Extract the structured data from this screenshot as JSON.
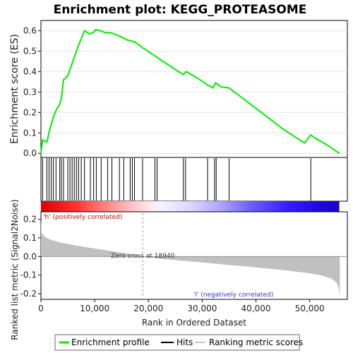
{
  "chart_data": [
    {
      "type": "line",
      "title": "Enrichment plot: KEGG_PROTEASOME",
      "ylabel": "Enrichment score (ES)",
      "xlim": [
        0,
        57000
      ],
      "ylim": [
        -0.02,
        0.65
      ],
      "yticks": [
        0.0,
        0.1,
        0.2,
        0.3,
        0.4,
        0.5,
        0.6
      ],
      "ytick_labels": [
        "0.0",
        "0.1",
        "0.2",
        "0.3",
        "0.4",
        "0.5",
        "0.6"
      ],
      "series": [
        {
          "name": "Enrichment profile",
          "color": "#00ee00",
          "x": [
            0,
            300,
            1100,
            1500,
            1900,
            2300,
            2800,
            3500,
            3800,
            4200,
            5000,
            5400,
            5800,
            6200,
            6600,
            7000,
            7500,
            8100,
            9000,
            9700,
            10200,
            11000,
            12000,
            13000,
            14500,
            16000,
            17500,
            19000,
            21000,
            23000,
            25000,
            26500,
            27000,
            29000,
            31000,
            32000,
            32500,
            33500,
            35000,
            37000,
            39000,
            41000,
            43000,
            45000,
            47000,
            49000,
            50200,
            51000,
            53000,
            55500
          ],
          "y": [
            0.0,
            0.065,
            0.055,
            0.1,
            0.14,
            0.175,
            0.21,
            0.24,
            0.27,
            0.36,
            0.38,
            0.41,
            0.44,
            0.47,
            0.5,
            0.53,
            0.56,
            0.6,
            0.585,
            0.59,
            0.605,
            0.6,
            0.59,
            0.59,
            0.575,
            0.555,
            0.545,
            0.515,
            0.48,
            0.445,
            0.41,
            0.385,
            0.4,
            0.37,
            0.335,
            0.32,
            0.345,
            0.325,
            0.32,
            0.28,
            0.24,
            0.2,
            0.16,
            0.12,
            0.085,
            0.05,
            0.09,
            0.075,
            0.045,
            0.0
          ]
        }
      ]
    },
    {
      "type": "scatter",
      "name": "hits",
      "xlim": [
        0,
        57000
      ],
      "color": "#000000",
      "x": [
        300,
        1100,
        1500,
        1900,
        2300,
        2800,
        3500,
        3800,
        4200,
        5000,
        5400,
        5800,
        6200,
        6600,
        7000,
        7500,
        8100,
        9200,
        9800,
        10300,
        11200,
        12400,
        13200,
        14600,
        15400,
        16600,
        17000,
        17400,
        18900,
        21200,
        21600,
        26500,
        26900,
        31000,
        32300,
        32600,
        35000,
        50200
      ]
    },
    {
      "type": "area",
      "ylabel": "Ranked list metric (Signal2Noise)",
      "xlabel": "Rank in Ordered Dataset",
      "xlim": [
        0,
        57000
      ],
      "ylim": [
        -0.23,
        0.24
      ],
      "yticks": [
        -0.2,
        -0.1,
        0.0,
        0.1,
        0.2
      ],
      "ytick_labels": [
        "-0.2",
        "-0.1",
        "0.0",
        "0.1",
        "0.2"
      ],
      "xticks": [
        0,
        10000,
        20000,
        30000,
        40000,
        50000
      ],
      "xtick_labels": [
        "0",
        "10,000",
        "20,000",
        "30,000",
        "40,000",
        "50,000"
      ],
      "zero_cross": 18940,
      "zero_cross_label": "Zero cross at 18940",
      "pos_label": "'h' (positively correlated)",
      "neg_label": "'l' (negatively correlated)",
      "series": [
        {
          "name": "Ranking metric scores",
          "color": "#c0c0c0",
          "x": [
            0,
            100,
            400,
            1000,
            2000,
            4000,
            6000,
            8000,
            10000,
            12000,
            14000,
            16000,
            18940,
            22000,
            26000,
            30000,
            34000,
            38000,
            42000,
            46000,
            50000,
            52000,
            54000,
            55000,
            55400,
            55600
          ],
          "y": [
            0.2,
            0.13,
            0.115,
            0.1,
            0.088,
            0.073,
            0.062,
            0.052,
            0.043,
            0.034,
            0.025,
            0.017,
            0.0,
            -0.012,
            -0.022,
            -0.032,
            -0.043,
            -0.053,
            -0.064,
            -0.076,
            -0.09,
            -0.1,
            -0.118,
            -0.14,
            -0.17,
            -0.22
          ]
        }
      ]
    }
  ],
  "legend": {
    "items": [
      {
        "label": "Enrichment profile",
        "color": "#00ee00",
        "kind": "thick-line"
      },
      {
        "label": "Hits",
        "color": "#000000",
        "kind": "line"
      },
      {
        "label": "Ranking metric scores",
        "color": "#c8c8c8",
        "kind": "line"
      }
    ]
  }
}
